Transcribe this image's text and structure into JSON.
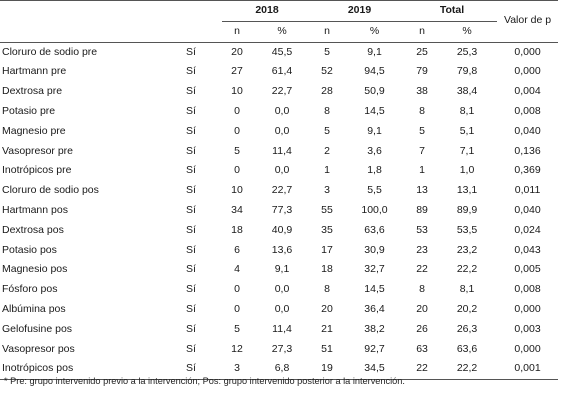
{
  "header": {
    "group_2018": "2018",
    "group_2019": "2019",
    "group_total": "Total",
    "valor_p": "Valor de p",
    "n": "n",
    "pct": "%"
  },
  "rows": [
    {
      "label": "Cloruro de sodio pre",
      "si": "Sí",
      "n18": "20",
      "p18": "45,5",
      "n19": "5",
      "p19": "9,1",
      "nt": "25",
      "pt": "25,3",
      "p": "0,000"
    },
    {
      "label": "Hartmann pre",
      "si": "Sí",
      "n18": "27",
      "p18": "61,4",
      "n19": "52",
      "p19": "94,5",
      "nt": "79",
      "pt": "79,8",
      "p": "0,000"
    },
    {
      "label": "Dextrosa pre",
      "si": "Sí",
      "n18": "10",
      "p18": "22,7",
      "n19": "28",
      "p19": "50,9",
      "nt": "38",
      "pt": "38,4",
      "p": "0,004"
    },
    {
      "label": "Potasio pre",
      "si": "Sí",
      "n18": "0",
      "p18": "0,0",
      "n19": "8",
      "p19": "14,5",
      "nt": "8",
      "pt": "8,1",
      "p": "0,008"
    },
    {
      "label": "Magnesio pre",
      "si": "Sí",
      "n18": "0",
      "p18": "0,0",
      "n19": "5",
      "p19": "9,1",
      "nt": "5",
      "pt": "5,1",
      "p": "0,040"
    },
    {
      "label": "Vasopresor pre",
      "si": "Sí",
      "n18": "5",
      "p18": "11,4",
      "n19": "2",
      "p19": "3,6",
      "nt": "7",
      "pt": "7,1",
      "p": "0,136"
    },
    {
      "label": "Inotrópicos pre",
      "si": "Sí",
      "n18": "0",
      "p18": "0,0",
      "n19": "1",
      "p19": "1,8",
      "nt": "1",
      "pt": "1,0",
      "p": "0,369"
    },
    {
      "label": "Cloruro de sodio pos",
      "si": "Sí",
      "n18": "10",
      "p18": "22,7",
      "n19": "3",
      "p19": "5,5",
      "nt": "13",
      "pt": "13,1",
      "p": "0,011"
    },
    {
      "label": "Hartmann pos",
      "si": "Sí",
      "n18": "34",
      "p18": "77,3",
      "n19": "55",
      "p19": "100,0",
      "nt": "89",
      "pt": "89,9",
      "p": "0,040"
    },
    {
      "label": "Dextrosa pos",
      "si": "Sí",
      "n18": "18",
      "p18": "40,9",
      "n19": "35",
      "p19": "63,6",
      "nt": "53",
      "pt": "53,5",
      "p": "0,024"
    },
    {
      "label": "Potasio pos",
      "si": "Sí",
      "n18": "6",
      "p18": "13,6",
      "n19": "17",
      "p19": "30,9",
      "nt": "23",
      "pt": "23,2",
      "p": "0,043"
    },
    {
      "label": "Magnesio pos",
      "si": "Sí",
      "n18": "4",
      "p18": "9,1",
      "n19": "18",
      "p19": "32,7",
      "nt": "22",
      "pt": "22,2",
      "p": "0,005"
    },
    {
      "label": "Fósforo pos",
      "si": "Sí",
      "n18": "0",
      "p18": "0,0",
      "n19": "8",
      "p19": "14,5",
      "nt": "8",
      "pt": "8,1",
      "p": "0,008"
    },
    {
      "label": "Albúmina pos",
      "si": "Sí",
      "n18": "0",
      "p18": "0,0",
      "n19": "20",
      "p19": "36,4",
      "nt": "20",
      "pt": "20,2",
      "p": "0,000"
    },
    {
      "label": "Gelofusine pos",
      "si": "Sí",
      "n18": "5",
      "p18": "11,4",
      "n19": "21",
      "p19": "38,2",
      "nt": "26",
      "pt": "26,3",
      "p": "0,003"
    },
    {
      "label": "Vasopresor pos",
      "si": "Sí",
      "n18": "12",
      "p18": "27,3",
      "n19": "51",
      "p19": "92,7",
      "nt": "63",
      "pt": "63,6",
      "p": "0,000"
    },
    {
      "label": "Inotrópicos pos",
      "si": "Sí",
      "n18": "3",
      "p18": "6,8",
      "n19": "19",
      "p19": "34,5",
      "nt": "22",
      "pt": "22,2",
      "p": "0,001"
    }
  ],
  "footnote": "* Pre: grupo intervenido previo a la intervención; Pos: grupo intervenido posterior a la intervención."
}
